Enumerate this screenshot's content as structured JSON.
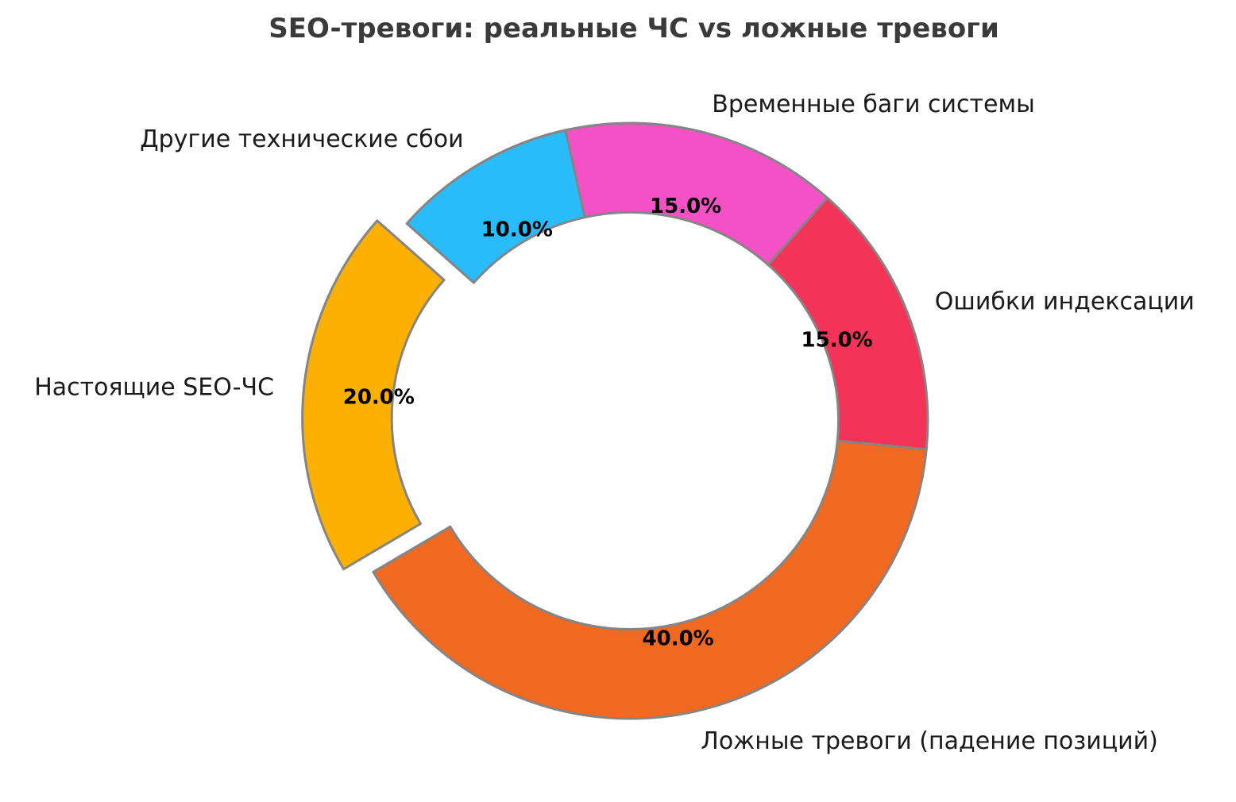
{
  "chart_data": {
    "type": "pie",
    "subtype": "donut",
    "title": "SEO-тревоги: реальные ЧС vs ложные тревоги",
    "legend": "none",
    "direction": "clockwise",
    "start_angle": 102.5,
    "donut_hole_ratio": 0.7,
    "label_distance": 1.1,
    "pct_distance": 0.747,
    "background_color": "#ffffff",
    "edge_color": "#858585",
    "title_color": "#3a3a3a",
    "label_color": "#1a1a1a",
    "pct_label_color": "#000000",
    "slices": [
      {
        "label": "Временные баги системы",
        "value": 15,
        "pct_label": "15.0%",
        "color": "#F551C7",
        "explode": 0.0
      },
      {
        "label": "Ошибки индексации",
        "value": 15,
        "pct_label": "15.0%",
        "color": "#F33357",
        "explode": 0.0
      },
      {
        "label": "Ложные тревоги (падение позиций)",
        "value": 40,
        "pct_label": "40.0%",
        "color": "#F06921",
        "explode": 0.0
      },
      {
        "label": "Настоящие SEO-ЧС",
        "value": 20,
        "pct_label": "20.0%",
        "color": "#FCB001",
        "explode": 0.1
      },
      {
        "label": "Другие технические сбои",
        "value": 10,
        "pct_label": "10.0%",
        "color": "#29BBFA",
        "explode": 0.0
      }
    ]
  }
}
